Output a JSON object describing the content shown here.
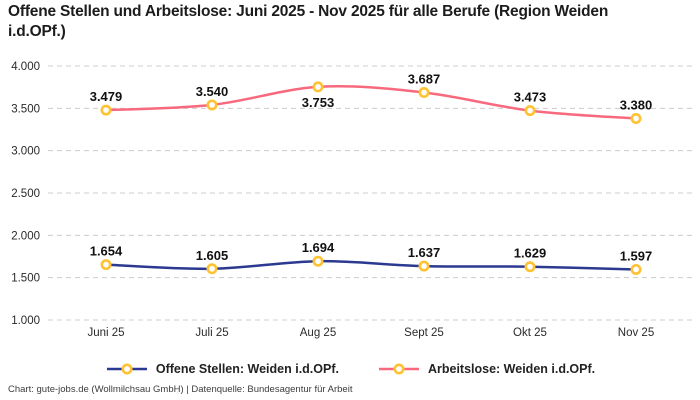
{
  "title": "Offene Stellen und Arbeitslose: Juni 2025 - Nov 2025 für alle Berufe (Region Weiden i.d.OPf.)",
  "footer": "Chart: gute-jobs.de (Wollmilchsau GmbH) | Datenquelle: Bundesagentur für Arbeit",
  "colors": {
    "grid": "#cccccc",
    "axis_text": "#2a2a2a",
    "data_label": "#111111",
    "marker_fill": "#ffffff",
    "marker_stroke": "#ffc233",
    "offene_stellen_line": "#2b3990",
    "arbeitslose_line": "#f8697d"
  },
  "chart_data": {
    "type": "line",
    "title": "Offene Stellen und Arbeitslose: Juni 2025 - Nov 2025 für alle Berufe (Region Weiden i.d.OPf.)",
    "categories": [
      "Juni 25",
      "Juli 25",
      "Aug 25",
      "Sept 25",
      "Okt 25",
      "Nov 25"
    ],
    "series": [
      {
        "name": "Offene Stellen: Weiden i.d.OPf.",
        "values": [
          1654,
          1605,
          1694,
          1637,
          1629,
          1597
        ],
        "labels": [
          "1.654",
          "1.605",
          "1.694",
          "1.637",
          "1.629",
          "1.597"
        ],
        "color": "#2b3990",
        "label_positions": [
          "above",
          "above",
          "above",
          "above",
          "above",
          "above"
        ]
      },
      {
        "name": "Arbeitslose: Weiden i.d.OPf.",
        "values": [
          3479,
          3540,
          3753,
          3687,
          3473,
          3380
        ],
        "labels": [
          "3.479",
          "3.540",
          "3.753",
          "3.687",
          "3.473",
          "3.380"
        ],
        "color": "#f8697d",
        "label_positions": [
          "above",
          "above",
          "below",
          "above",
          "above",
          "above"
        ]
      }
    ],
    "xlabel": "",
    "ylabel": "",
    "ylim": [
      1000,
      4000
    ],
    "y_ticks": [
      {
        "value": 4000,
        "label": "4.000"
      },
      {
        "value": 3500,
        "label": "3.500"
      },
      {
        "value": 3000,
        "label": "3.000"
      },
      {
        "value": 2500,
        "label": "2.500"
      },
      {
        "value": 2000,
        "label": "2.000"
      },
      {
        "value": 1500,
        "label": "1.500"
      },
      {
        "value": 1000,
        "label": "1.000"
      }
    ],
    "grid": "horizontal-dashed",
    "legend_position": "bottom",
    "marker": {
      "shape": "circle",
      "fill": "#ffffff",
      "stroke": "#ffc233"
    }
  }
}
